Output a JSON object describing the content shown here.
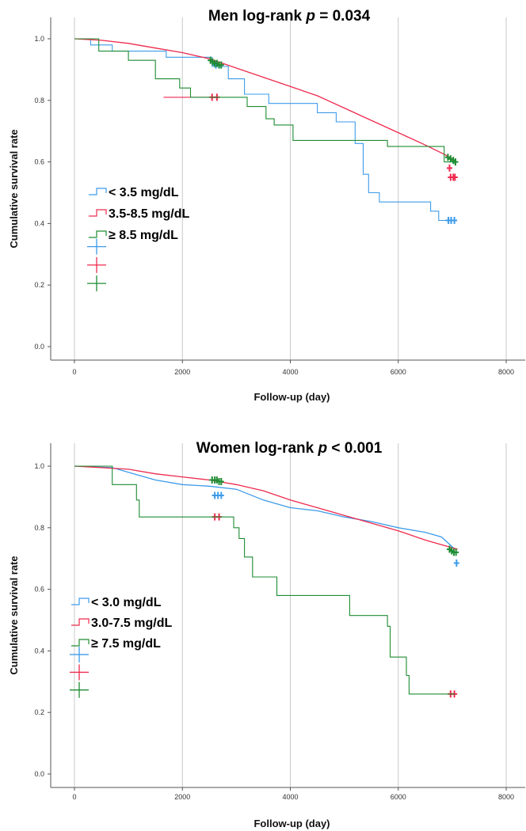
{
  "chart_data": [
    {
      "type": "line",
      "title_group": "Men",
      "title_stat": "log-rank",
      "title_p": "p",
      "title_value": "= 0.034",
      "xlabel": "Follow-up (day)",
      "ylabel": "Cumulative survival rate",
      "xlim": [
        0,
        8000
      ],
      "ylim": [
        0,
        1.0
      ],
      "x_ticks": [
        "0",
        "2000",
        "4000",
        "6000",
        "8000"
      ],
      "y_ticks": [
        "0.0",
        "0.2",
        "0.4",
        "0.6",
        "0.8",
        "1.0"
      ],
      "grid": "vertical",
      "legend_position": "left-middle",
      "series": [
        {
          "name": "< 3.5 mg/dL",
          "color": "#3d9be9",
          "steps": [
            [
              0,
              1.0
            ],
            [
              300,
              0.98
            ],
            [
              700,
              0.96
            ],
            [
              1700,
              0.94
            ],
            [
              2550,
              0.91
            ],
            [
              2850,
              0.87
            ],
            [
              3150,
              0.82
            ],
            [
              3600,
              0.79
            ],
            [
              4500,
              0.76
            ],
            [
              4850,
              0.73
            ],
            [
              5200,
              0.66
            ],
            [
              5350,
              0.56
            ],
            [
              5450,
              0.5
            ],
            [
              5650,
              0.47
            ],
            [
              6600,
              0.44
            ],
            [
              6750,
              0.41
            ],
            [
              7050,
              0.41
            ]
          ],
          "censored": [
            [
              2620,
              0.915
            ],
            [
              2680,
              0.915
            ],
            [
              6930,
              0.41
            ],
            [
              6980,
              0.41
            ],
            [
              7040,
              0.41
            ]
          ]
        },
        {
          "name": "3.5-8.5 mg/dL",
          "color": "#ee2a4d",
          "curve": [
            [
              0,
              1.0
            ],
            [
              500,
              0.995
            ],
            [
              1000,
              0.985
            ],
            [
              1500,
              0.97
            ],
            [
              2000,
              0.955
            ],
            [
              2500,
              0.935
            ],
            [
              3000,
              0.905
            ],
            [
              3500,
              0.875
            ],
            [
              4000,
              0.845
            ],
            [
              4500,
              0.815
            ],
            [
              5000,
              0.775
            ],
            [
              5500,
              0.735
            ],
            [
              6000,
              0.695
            ],
            [
              6500,
              0.655
            ],
            [
              6850,
              0.625
            ],
            [
              7050,
              0.605
            ]
          ],
          "steps": [
            [
              1650,
              0.81
            ],
            [
              2600,
              0.81
            ]
          ],
          "censored": [
            [
              2550,
              0.81
            ],
            [
              2640,
              0.81
            ],
            [
              6950,
              0.58
            ],
            [
              6970,
              0.55
            ],
            [
              7020,
              0.55
            ],
            [
              7050,
              0.55
            ]
          ]
        },
        {
          "name": "≥ 8.5 mg/dL",
          "color": "#1e8c32",
          "steps": [
            [
              0,
              1.0
            ],
            [
              450,
              0.96
            ],
            [
              1000,
              0.93
            ],
            [
              1500,
              0.87
            ],
            [
              1950,
              0.84
            ],
            [
              2150,
              0.81
            ],
            [
              3200,
              0.78
            ],
            [
              3550,
              0.74
            ],
            [
              3700,
              0.72
            ],
            [
              4050,
              0.67
            ],
            [
              5800,
              0.65
            ],
            [
              6850,
              0.6
            ],
            [
              7050,
              0.59
            ]
          ],
          "censored": [
            [
              2520,
              0.93
            ],
            [
              2560,
              0.925
            ],
            [
              2600,
              0.92
            ],
            [
              2640,
              0.92
            ],
            [
              2680,
              0.915
            ],
            [
              2720,
              0.915
            ],
            [
              6920,
              0.615
            ],
            [
              6970,
              0.61
            ],
            [
              7020,
              0.605
            ],
            [
              7060,
              0.6
            ]
          ]
        }
      ]
    },
    {
      "type": "line",
      "title_group": "Women",
      "title_stat": "log-rank",
      "title_p": "p",
      "title_value": "< 0.001",
      "xlabel": "Follow-up (day)",
      "ylabel": "Cumulative survival rate",
      "xlim": [
        0,
        8000
      ],
      "ylim": [
        0,
        1.0
      ],
      "x_ticks": [
        "0",
        "2000",
        "4000",
        "6000",
        "8000"
      ],
      "y_ticks": [
        "0.0",
        "0.2",
        "0.4",
        "0.6",
        "0.8",
        "1.0"
      ],
      "grid": "vertical",
      "legend_position": "left-middle",
      "series": [
        {
          "name": "< 3.0 mg/dL",
          "color": "#3d9be9",
          "curve": [
            [
              0,
              1.0
            ],
            [
              700,
              0.995
            ],
            [
              1100,
              0.975
            ],
            [
              1500,
              0.955
            ],
            [
              2000,
              0.94
            ],
            [
              2500,
              0.935
            ],
            [
              3000,
              0.925
            ],
            [
              3500,
              0.89
            ],
            [
              4000,
              0.865
            ],
            [
              4500,
              0.855
            ],
            [
              5000,
              0.835
            ],
            [
              5500,
              0.82
            ],
            [
              6000,
              0.8
            ],
            [
              6500,
              0.785
            ],
            [
              6800,
              0.77
            ],
            [
              7050,
              0.73
            ]
          ],
          "censored": [
            [
              2600,
              0.905
            ],
            [
              2660,
              0.905
            ],
            [
              2720,
              0.905
            ],
            [
              7080,
              0.685
            ]
          ]
        },
        {
          "name": "3.0-7.5 mg/dL",
          "color": "#ee2a4d",
          "curve": [
            [
              0,
              1.0
            ],
            [
              500,
              0.995
            ],
            [
              1000,
              0.99
            ],
            [
              1500,
              0.975
            ],
            [
              2000,
              0.965
            ],
            [
              2500,
              0.955
            ],
            [
              3000,
              0.94
            ],
            [
              3500,
              0.92
            ],
            [
              4000,
              0.89
            ],
            [
              4500,
              0.865
            ],
            [
              5000,
              0.84
            ],
            [
              5500,
              0.815
            ],
            [
              6000,
              0.79
            ],
            [
              6500,
              0.76
            ],
            [
              7000,
              0.735
            ],
            [
              7100,
              0.73
            ]
          ],
          "steps": [
            [
              2550,
              0.835
            ],
            [
              2720,
              0.835
            ]
          ],
          "censored": [
            [
              2600,
              0.835
            ],
            [
              2680,
              0.835
            ],
            [
              6970,
              0.26
            ],
            [
              7040,
              0.26
            ]
          ]
        },
        {
          "name": "≥ 7.5 mg/dL",
          "color": "#1e8c32",
          "steps": [
            [
              0,
              1.0
            ],
            [
              700,
              0.94
            ],
            [
              1150,
              0.89
            ],
            [
              1200,
              0.835
            ],
            [
              2950,
              0.8
            ],
            [
              3050,
              0.765
            ],
            [
              3150,
              0.705
            ],
            [
              3300,
              0.64
            ],
            [
              3750,
              0.58
            ],
            [
              5100,
              0.515
            ],
            [
              5800,
              0.48
            ],
            [
              5850,
              0.38
            ],
            [
              6150,
              0.32
            ],
            [
              6200,
              0.26
            ],
            [
              7050,
              0.26
            ]
          ],
          "censored": [
            [
              2550,
              0.955
            ],
            [
              2600,
              0.955
            ],
            [
              2640,
              0.955
            ],
            [
              2680,
              0.95
            ],
            [
              2720,
              0.95
            ],
            [
              6950,
              0.73
            ],
            [
              6990,
              0.725
            ],
            [
              7030,
              0.72
            ],
            [
              7070,
              0.72
            ]
          ]
        }
      ]
    }
  ]
}
